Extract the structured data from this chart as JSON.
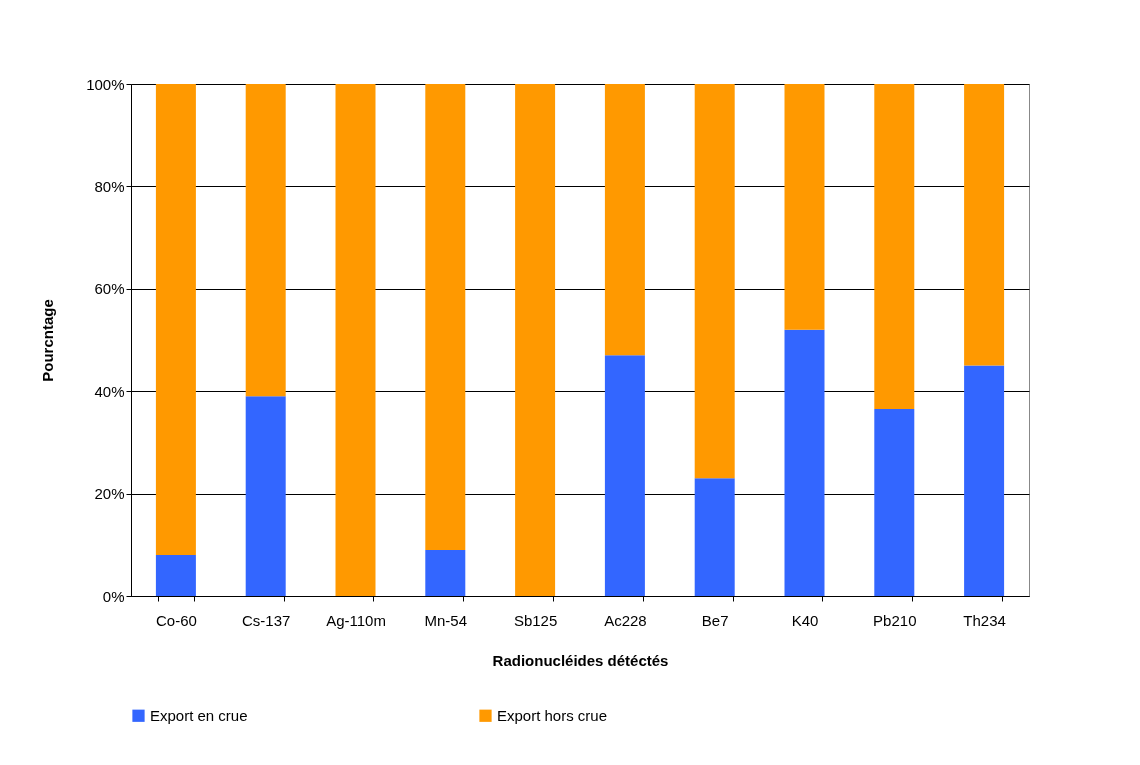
{
  "chart_data": {
    "type": "bar",
    "stacked": true,
    "xlabel": "Radionucléides détéctés",
    "ylabel": "Pourcntage",
    "categories": [
      "Co-60",
      "Cs-137",
      "Ag-110m",
      "Mn-54",
      "Sb125",
      "Ac228",
      "Be7",
      "K40",
      "Pb210",
      "Th234"
    ],
    "series": [
      {
        "name": "Export en crue",
        "color": "#3366ff",
        "values": [
          8,
          39,
          0,
          9,
          0,
          47,
          23,
          52,
          36.5,
          45
        ]
      },
      {
        "name": "Export hors crue",
        "color": "#ff9900",
        "values": [
          92,
          61,
          100,
          91,
          100,
          53,
          77,
          48,
          63.5,
          55
        ]
      }
    ],
    "ylim": [
      0,
      100
    ],
    "yticks": [
      {
        "value": 0,
        "label": "0%"
      },
      {
        "value": 20,
        "label": "20%"
      },
      {
        "value": 40,
        "label": "40%"
      },
      {
        "value": 60,
        "label": "60%"
      },
      {
        "value": 80,
        "label": "80%"
      },
      {
        "value": 100,
        "label": "100%"
      }
    ],
    "grid": "y",
    "legend": "bottom"
  }
}
